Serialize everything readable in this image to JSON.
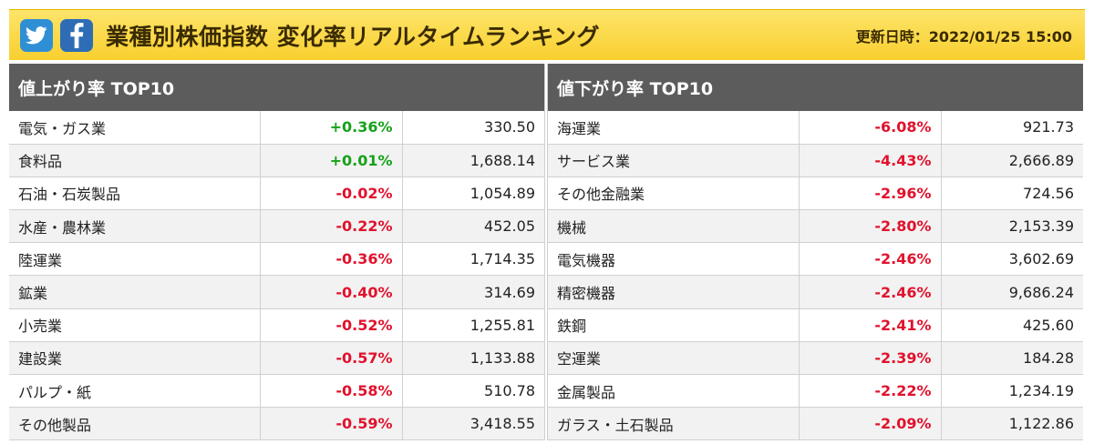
{
  "header": {
    "title": "業種別株価指数 変化率リアルタイムランキング",
    "updated": "更新日時：2022/01/25 15:00",
    "icons": [
      "twitter-icon",
      "facebook-icon"
    ]
  },
  "colors": {
    "up": "#17a21a",
    "down": "#e1122d",
    "header_bg": "#f8cf2e",
    "panel_head_bg": "#5c5c5c"
  },
  "gainers": {
    "title": "値上がり率 TOP10",
    "rows": [
      {
        "name": "電気・ガス業",
        "rate": "+0.36%",
        "value": "330.50",
        "dir": "up"
      },
      {
        "name": "食料品",
        "rate": "+0.01%",
        "value": "1,688.14",
        "dir": "up"
      },
      {
        "name": "石油・石炭製品",
        "rate": "-0.02%",
        "value": "1,054.89",
        "dir": "down"
      },
      {
        "name": "水産・農林業",
        "rate": "-0.22%",
        "value": "452.05",
        "dir": "down"
      },
      {
        "name": "陸運業",
        "rate": "-0.36%",
        "value": "1,714.35",
        "dir": "down"
      },
      {
        "name": "鉱業",
        "rate": "-0.40%",
        "value": "314.69",
        "dir": "down"
      },
      {
        "name": "小売業",
        "rate": "-0.52%",
        "value": "1,255.81",
        "dir": "down"
      },
      {
        "name": "建設業",
        "rate": "-0.57%",
        "value": "1,133.88",
        "dir": "down"
      },
      {
        "name": "パルプ・紙",
        "rate": "-0.58%",
        "value": "510.78",
        "dir": "down"
      },
      {
        "name": "その他製品",
        "rate": "-0.59%",
        "value": "3,418.55",
        "dir": "down"
      }
    ]
  },
  "losers": {
    "title": "値下がり率 TOP10",
    "rows": [
      {
        "name": "海運業",
        "rate": "-6.08%",
        "value": "921.73",
        "dir": "down"
      },
      {
        "name": "サービス業",
        "rate": "-4.43%",
        "value": "2,666.89",
        "dir": "down"
      },
      {
        "name": "その他金融業",
        "rate": "-2.96%",
        "value": "724.56",
        "dir": "down"
      },
      {
        "name": "機械",
        "rate": "-2.80%",
        "value": "2,153.39",
        "dir": "down"
      },
      {
        "name": "電気機器",
        "rate": "-2.46%",
        "value": "3,602.69",
        "dir": "down"
      },
      {
        "name": "精密機器",
        "rate": "-2.46%",
        "value": "9,686.24",
        "dir": "down"
      },
      {
        "name": "鉄鋼",
        "rate": "-2.41%",
        "value": "425.60",
        "dir": "down"
      },
      {
        "name": "空運業",
        "rate": "-2.39%",
        "value": "184.28",
        "dir": "down"
      },
      {
        "name": "金属製品",
        "rate": "-2.22%",
        "value": "1,234.19",
        "dir": "down"
      },
      {
        "name": "ガラス・土石製品",
        "rate": "-2.09%",
        "value": "1,122.86",
        "dir": "down"
      }
    ]
  }
}
